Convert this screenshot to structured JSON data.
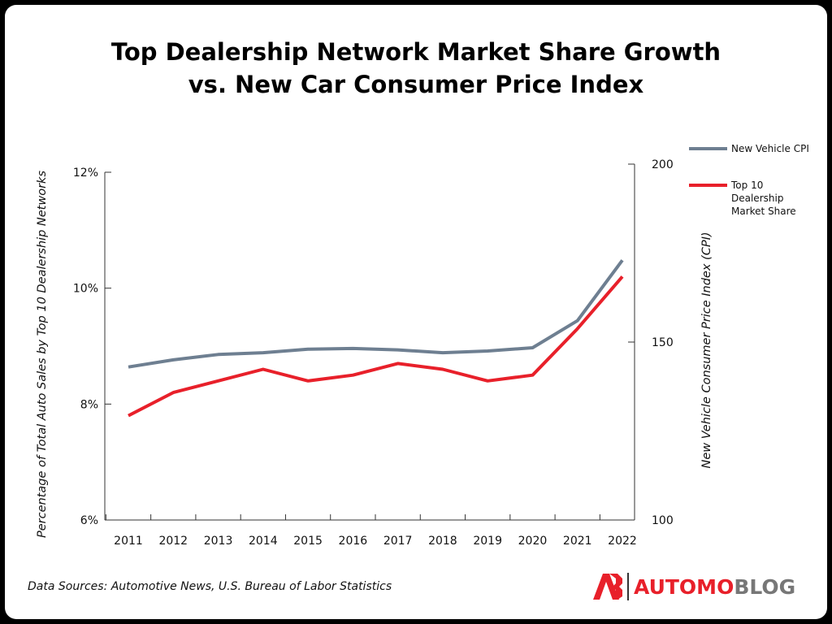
{
  "title_line1": "Top Dealership Network Market Share Growth",
  "title_line2": "vs. New Car Consumer Price Index",
  "source": "Data Sources: Automotive News, U.S. Bureau of Labor Statistics",
  "logo": {
    "part1": "AUTOMO",
    "part2": "BLOG",
    "colors": {
      "red": "#e8202a",
      "gray": "#777777"
    }
  },
  "chart_data": {
    "type": "line",
    "x": [
      "2011",
      "2012",
      "2013",
      "2014",
      "2015",
      "2016",
      "2017",
      "2018",
      "2019",
      "2020",
      "2021",
      "2022"
    ],
    "left_axis": {
      "label": "Percentage of Total Auto Sales by Top 10 Dealership Networks",
      "range": [
        6,
        12
      ],
      "ticks": [
        6,
        8,
        10,
        12
      ],
      "tick_labels": [
        "6%",
        "8%",
        "10%",
        "12%"
      ]
    },
    "right_axis": {
      "label": "New Vehicle Consumer Price Index (CPI)",
      "range": [
        100,
        200
      ],
      "ticks": [
        100,
        150,
        200
      ],
      "tick_labels": [
        "100",
        "150",
        "200"
      ]
    },
    "series": [
      {
        "name": "New Vehicle CPI",
        "legend_lines": [
          "New Vehicle CPI"
        ],
        "axis": "right",
        "color": "#6e7f91",
        "values": [
          143,
          145,
          146.5,
          147,
          148,
          148.2,
          147.8,
          147,
          147.5,
          148.4,
          156,
          173
        ]
      },
      {
        "name": "Top 10 Dealership Market Share",
        "legend_lines": [
          "Top 10",
          "Dealership",
          "Market Share"
        ],
        "axis": "left",
        "color": "#e8202a",
        "values": [
          7.8,
          8.2,
          8.4,
          8.6,
          8.4,
          8.5,
          8.7,
          8.6,
          8.4,
          8.5,
          9.3,
          10.2
        ]
      }
    ],
    "legend_position": "top-right",
    "grid": false
  }
}
